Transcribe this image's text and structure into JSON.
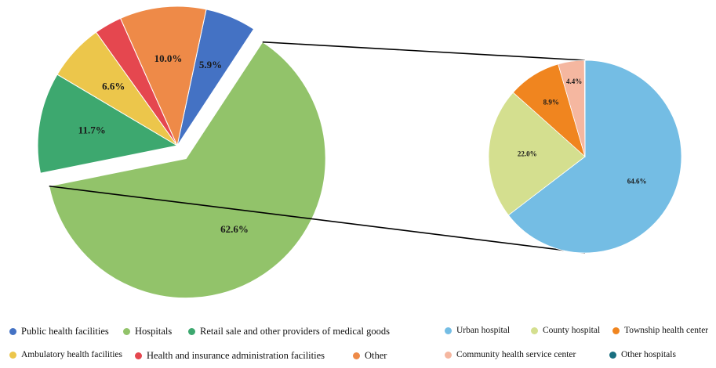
{
  "chart_data": [
    {
      "type": "pie",
      "title": "",
      "slices": [
        {
          "label": "Public health facilities",
          "value": 5.9,
          "display": "5.9%",
          "color": "#4472c4"
        },
        {
          "label": "Hospitals",
          "value": 62.6,
          "display": "62.6%",
          "color": "#92c36a"
        },
        {
          "label": "Retail sale and other providers of medical goods",
          "value": 11.7,
          "display": "11.7%",
          "color": "#3da86f"
        },
        {
          "label": "Ambulatory health facilities",
          "value": 6.6,
          "display": "6.6%",
          "color": "#ecc64b"
        },
        {
          "label": "Health and insurance administration facilities",
          "value": 3.2,
          "display": "",
          "color": "#e5474f"
        },
        {
          "label": "Other",
          "value": 10.0,
          "display": "10.0%",
          "color": "#ee8a48"
        }
      ],
      "exploded": "Hospitals",
      "legend_placement": "bottom"
    },
    {
      "type": "pie",
      "title": "",
      "slices": [
        {
          "label": "Urban hospital",
          "value": 64.6,
          "display": "64.6%",
          "color": "#74bde4"
        },
        {
          "label": "County hospital",
          "value": 22.0,
          "display": "22.0%",
          "color": "#d4df8f"
        },
        {
          "label": "Township health center",
          "value": 8.9,
          "display": "8.9%",
          "color": "#f0851f"
        },
        {
          "label": "Community health service center",
          "value": 4.4,
          "display": "4.4%",
          "color": "#f5b7a0"
        },
        {
          "label": "Other hospitals",
          "value": 0.1,
          "display": "",
          "color": "#1a6f80"
        }
      ],
      "legend_placement": "bottom"
    }
  ]
}
